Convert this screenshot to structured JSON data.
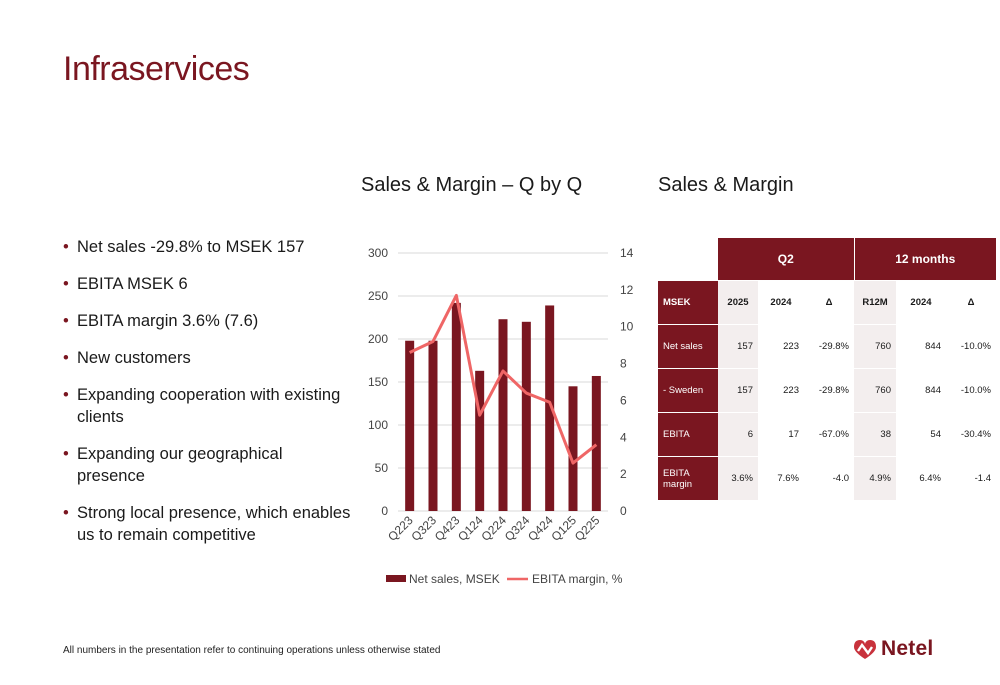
{
  "slide": {
    "title": "Infraservices",
    "chart_heading": "Sales & Margin – Q by Q",
    "table_heading": "Sales & Margin",
    "footer": "All numbers in the presentation refer to continuing operations unless otherwise stated",
    "logo_text": "Netel"
  },
  "bullets": [
    "Net sales -29.8% to MSEK 157",
    "EBITA MSEK 6",
    "EBITA margin 3.6% (7.6)",
    "New customers",
    "Expanding cooperation with existing clients",
    "Expanding our geographical presence",
    "Strong local presence, which enables us to remain competitive"
  ],
  "colors": {
    "bar": "#7a1620",
    "line": "#ef6666",
    "accent": "#7a1620"
  },
  "chart_data": {
    "type": "bar",
    "categories": [
      "Q223",
      "Q323",
      "Q423",
      "Q124",
      "Q224",
      "Q324",
      "Q424",
      "Q125",
      "Q225"
    ],
    "series": [
      {
        "name": "Net sales, MSEK",
        "type": "bar",
        "axis": "left",
        "values": [
          198,
          198,
          242,
          163,
          223,
          220,
          239,
          145,
          157
        ]
      },
      {
        "name": "EBITA margin, %",
        "type": "line",
        "axis": "right",
        "values": [
          8.6,
          9.2,
          11.7,
          5.2,
          7.6,
          6.4,
          5.9,
          2.6,
          3.6
        ]
      }
    ],
    "y_left": {
      "lim": [
        0,
        300
      ],
      "ticks": [
        "0",
        "50",
        "100",
        "150",
        "200",
        "250",
        "300"
      ]
    },
    "y_right": {
      "lim": [
        0,
        14
      ],
      "ticks": [
        "0",
        "2",
        "4",
        "6",
        "8",
        "10",
        "12",
        "14"
      ]
    },
    "grid": true,
    "legend": "bottom"
  },
  "table": {
    "group_headers": [
      "Q2",
      "12 months"
    ],
    "columns": [
      "MSEK",
      "2025",
      "2024",
      "Δ",
      "R12M",
      "2024",
      "Δ"
    ],
    "rows": [
      {
        "label": "Net sales",
        "cells": [
          "157",
          "223",
          "-29.8%",
          "760",
          "844",
          "-10.0%"
        ]
      },
      {
        "label": "- Sweden",
        "cells": [
          "157",
          "223",
          "-29.8%",
          "760",
          "844",
          "-10.0%"
        ]
      },
      {
        "label": "EBITA",
        "cells": [
          "6",
          "17",
          "-67.0%",
          "38",
          "54",
          "-30.4%"
        ]
      },
      {
        "label": "EBITA margin",
        "cells": [
          "3.6%",
          "7.6%",
          "-4.0",
          "4.9%",
          "6.4%",
          "-1.4"
        ]
      }
    ]
  }
}
